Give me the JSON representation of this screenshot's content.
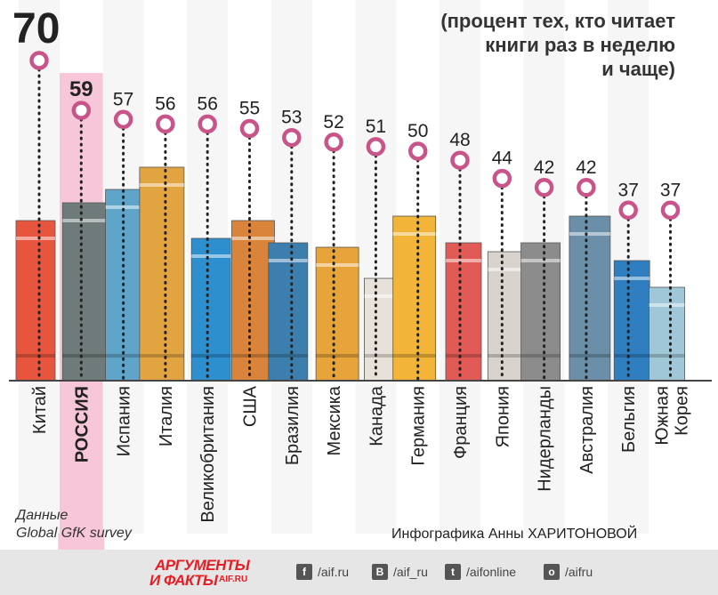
{
  "chart_data": {
    "type": "bar",
    "title": "70",
    "note": "(процент тех, кто читает книги раз в неделю и чаще)",
    "categories": [
      "Китай",
      "РОССИЯ",
      "Испания",
      "Италия",
      "Великобритания",
      "США",
      "Бразилия",
      "Мексика",
      "Канада",
      "Германия",
      "Франция",
      "Япония",
      "Нидерланды",
      "Австралия",
      "Бельгия",
      "Южная Корея"
    ],
    "values": [
      70,
      59,
      57,
      56,
      56,
      55,
      53,
      52,
      51,
      50,
      48,
      44,
      42,
      42,
      37,
      37
    ],
    "highlight": "РОССИЯ",
    "colors": {
      "marker": "#c8548a",
      "highlight_band": "#f7c6d8",
      "title": "#222222"
    }
  },
  "texts": {
    "note_lines": [
      "(процент тех, кто читает",
      "книги раз в неделю",
      "и чаще)"
    ],
    "source_lines": [
      "Данные",
      "Global GfK survey"
    ],
    "credit": "Инфографика Анны ХАРИТОНОВОЙ"
  },
  "footer": {
    "logo_top": "АРГУМЕНТЫ",
    "logo_bottom": "И ФАКТЫ",
    "logo_site": "AIF.RU",
    "social": [
      {
        "icon": "facebook-icon",
        "glyph": "f",
        "text": "/aif.ru"
      },
      {
        "icon": "vk-icon",
        "glyph": "B",
        "text": "/aif_ru"
      },
      {
        "icon": "twitter-icon",
        "glyph": "t",
        "text": "/aifonline"
      },
      {
        "icon": "odnoklassniki-icon",
        "glyph": "o",
        "text": "/aifru"
      }
    ]
  }
}
